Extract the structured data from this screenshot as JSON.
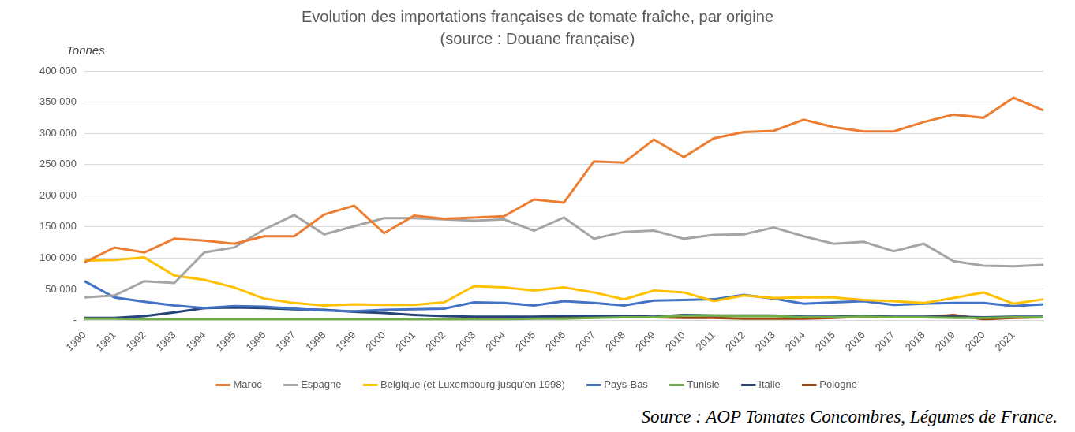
{
  "chart_data": {
    "type": "line",
    "title": "Evolution des importations françaises de tomate fraîche, par origine",
    "subtitle": "(source : Douane française)",
    "y_label": "Tonnes",
    "source": "Source : AOP Tomates Concombres, Légumes de France.",
    "categories": [
      "1990",
      "1991",
      "1992",
      "1993",
      "1994",
      "1995",
      "1996",
      "1997",
      "1998",
      "1999",
      "2000",
      "2001",
      "2002",
      "2003",
      "2004",
      "2005",
      "2006",
      "2007",
      "2008",
      "2009",
      "2010",
      "2011",
      "2012",
      "2013",
      "2014",
      "2015",
      "2016",
      "2017",
      "2018",
      "2019",
      "2020",
      "2021",
      null
    ],
    "series": [
      {
        "name": "Maroc",
        "color": "#ED7D31",
        "values": [
          93000,
          117000,
          109000,
          131000,
          128000,
          123000,
          135000,
          135000,
          170000,
          184000,
          140000,
          168000,
          163000,
          165000,
          167000,
          194000,
          189000,
          255000,
          253000,
          290000,
          262000,
          292000,
          302000,
          304000,
          322000,
          310000,
          303000,
          303000,
          318000,
          330000,
          325000,
          357000,
          337000
        ]
      },
      {
        "name": "Espagne",
        "color": "#A5A5A5",
        "values": [
          37000,
          40000,
          63000,
          60000,
          109000,
          117000,
          146000,
          169000,
          138000,
          151000,
          164000,
          164000,
          162000,
          160000,
          162000,
          144000,
          165000,
          131000,
          142000,
          144000,
          131000,
          137000,
          138000,
          149000,
          135000,
          123000,
          126000,
          111000,
          123000,
          95000,
          88000,
          87000,
          89000
        ]
      },
      {
        "name": "Belgique (et Luxembourg jusqu'en 1998)",
        "color": "#FFC000",
        "values": [
          96000,
          97000,
          101000,
          72000,
          65000,
          53000,
          35000,
          28000,
          24000,
          26000,
          25000,
          25000,
          29000,
          55000,
          53000,
          48000,
          53000,
          45000,
          34000,
          48000,
          45000,
          31000,
          40000,
          36000,
          37000,
          37000,
          33000,
          31000,
          28000,
          36000,
          45000,
          27000,
          34000
        ]
      },
      {
        "name": "Pays-Bas",
        "color": "#4472C4",
        "values": [
          63000,
          37000,
          30000,
          24000,
          20000,
          23000,
          22000,
          19000,
          16000,
          15000,
          17000,
          18000,
          19000,
          29000,
          28000,
          24000,
          31000,
          28000,
          24000,
          32000,
          33000,
          34000,
          41000,
          35000,
          27000,
          29000,
          31000,
          25000,
          27000,
          28000,
          28000,
          23000,
          26000
        ]
      },
      {
        "name": "Tunisie",
        "color": "#70AD47",
        "values": [
          3000,
          3000,
          2000,
          2000,
          2000,
          2000,
          2000,
          2000,
          2000,
          2000,
          2000,
          2000,
          2000,
          2000,
          2000,
          3000,
          3000,
          4000,
          5000,
          5000,
          8000,
          8000,
          7000,
          7000,
          5000,
          5000,
          6000,
          5000,
          5000,
          4000,
          4000,
          5000,
          5000
        ]
      },
      {
        "name": "Italie",
        "color": "#264478",
        "values": [
          4000,
          4000,
          7000,
          13000,
          20000,
          21000,
          20000,
          18000,
          17000,
          14000,
          12000,
          9000,
          7000,
          6000,
          6000,
          6000,
          7000,
          7000,
          7000,
          6000,
          9000,
          8000,
          8000,
          8000,
          6000,
          6000,
          7000,
          6000,
          6000,
          6000,
          5000,
          6000,
          6000
        ]
      },
      {
        "name": "Pologne",
        "color": "#9E480E",
        "values": [
          null,
          null,
          null,
          null,
          null,
          null,
          null,
          null,
          null,
          null,
          null,
          null,
          null,
          3000,
          3000,
          4000,
          4000,
          5000,
          5000,
          5000,
          4000,
          4000,
          3000,
          3000,
          3000,
          4000,
          6000,
          5000,
          5000,
          9000,
          2000,
          4000,
          5000
        ]
      }
    ],
    "ylim": [
      0,
      400000
    ],
    "yticks": [
      {
        "value": 0,
        "label": "-"
      },
      {
        "value": 50000,
        "label": "50 000"
      },
      {
        "value": 100000,
        "label": "100 000"
      },
      {
        "value": 150000,
        "label": "150 000"
      },
      {
        "value": 200000,
        "label": "200 000"
      },
      {
        "value": 250000,
        "label": "250 000"
      },
      {
        "value": 300000,
        "label": "300 000"
      },
      {
        "value": 350000,
        "label": "350 000"
      },
      {
        "value": 400000,
        "label": "400 000"
      }
    ],
    "grid": true,
    "legend": "bottom"
  }
}
